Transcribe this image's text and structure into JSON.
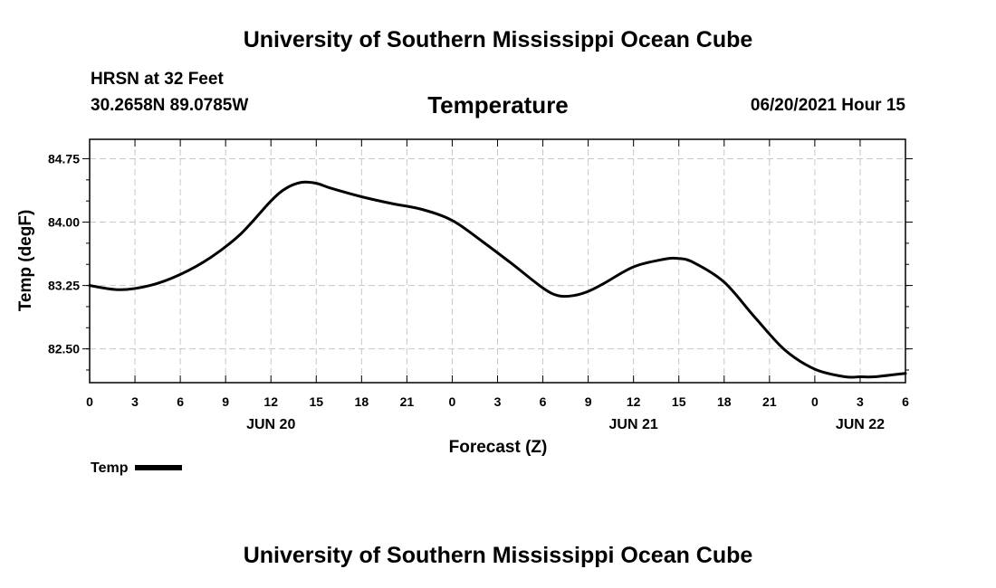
{
  "page": {
    "top_title": "University of Southern Mississippi Ocean Cube",
    "station": "HRSN at 32 Feet",
    "coords": "30.2658N  89.0785W",
    "variable_title": "Temperature",
    "datetime": "06/20/2021 Hour 15",
    "bottom_title": "University of Southern Mississippi Ocean Cube",
    "legend_label": "Temp"
  },
  "chart_data": {
    "type": "line",
    "title": "Temperature",
    "xlabel": "Forecast (Z)",
    "ylabel": "Temp (degF)",
    "xlim": [
      0,
      54
    ],
    "ylim": [
      82.1,
      84.98
    ],
    "yticks": [
      82.5,
      83.25,
      84.0,
      84.75
    ],
    "ytick_labels": [
      "82.50",
      "83.25",
      "84.00",
      "84.75"
    ],
    "y_minor_step": 0.25,
    "xticks": [
      0,
      3,
      6,
      9,
      12,
      15,
      18,
      21,
      24,
      27,
      30,
      33,
      36,
      39,
      42,
      45,
      48,
      51,
      54
    ],
    "xtick_labels": [
      "0",
      "3",
      "6",
      "9",
      "12",
      "15",
      "18",
      "21",
      "0",
      "3",
      "6",
      "9",
      "12",
      "15",
      "18",
      "21",
      "0",
      "3",
      "6"
    ],
    "date_labels": [
      {
        "x": 12,
        "label": "JUN 20"
      },
      {
        "x": 36,
        "label": "JUN 21"
      },
      {
        "x": 51,
        "label": "JUN 22"
      }
    ],
    "grid": true,
    "legend": "bottom-left",
    "color": "#000000",
    "series": [
      {
        "name": "Temp",
        "x": [
          0,
          2,
          4,
          6,
          8,
          10,
          12,
          13,
          14,
          15,
          16,
          18,
          20,
          22,
          24,
          26,
          28,
          30,
          31,
          32,
          33,
          34,
          36,
          38,
          39,
          40,
          42,
          44,
          46,
          48,
          50,
          51,
          52,
          54
        ],
        "values": [
          83.25,
          83.2,
          83.25,
          83.38,
          83.58,
          83.86,
          84.25,
          84.4,
          84.47,
          84.46,
          84.4,
          84.3,
          84.22,
          84.15,
          84.02,
          83.77,
          83.5,
          83.22,
          83.13,
          83.13,
          83.18,
          83.27,
          83.47,
          83.56,
          83.57,
          83.52,
          83.29,
          82.88,
          82.49,
          82.26,
          82.17,
          82.17,
          82.17,
          82.21
        ]
      }
    ]
  }
}
